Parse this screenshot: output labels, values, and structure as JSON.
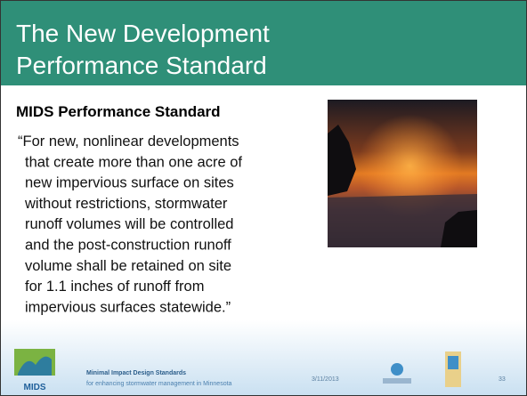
{
  "header": {
    "title": [
      "The New Development",
      "Performance Standard"
    ]
  },
  "body": {
    "heading": "MIDS Performance Standard",
    "quote": [
      "“For new, nonlinear developments",
      "that create more than one acre of",
      "new impervious surface on sites",
      "without restrictions, stormwater",
      "runoff volumes will be controlled",
      "and the post-construction runoff",
      "volume shall be retained on site",
      "for 1.1 inches of runoff from",
      "impervious surfaces statewide.”"
    ]
  },
  "footer": {
    "logo": "MIDS",
    "name": "Minimal Impact Design Standards",
    "tagline": "for enhancing stormwater management in Minnesota",
    "date": "3/11/2013",
    "page": "33"
  }
}
